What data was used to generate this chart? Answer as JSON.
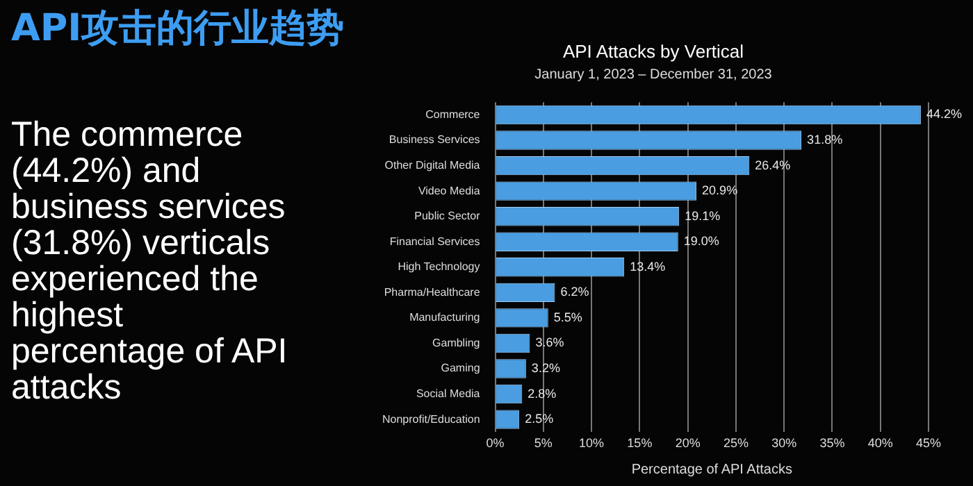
{
  "chart_data": {
    "type": "bar",
    "orientation": "horizontal",
    "title": "API Attacks by Vertical",
    "subtitle": "January 1, 2023 – December 31, 2023",
    "xlabel": "Percentage of API Attacks",
    "categories": [
      "Commerce",
      "Business Services",
      "Other Digital Media",
      "Video Media",
      "Public Sector",
      "Financial Services",
      "High Technology",
      "Pharma/Healthcare",
      "Manufacturing",
      "Gambling",
      "Gaming",
      "Social Media",
      "Nonprofit/Education"
    ],
    "values": [
      44.2,
      31.8,
      26.4,
      20.9,
      19.1,
      19.0,
      13.4,
      6.2,
      5.5,
      3.6,
      3.2,
      2.8,
      2.5
    ],
    "value_labels": [
      "44.2%",
      "31.8%",
      "26.4%",
      "20.9%",
      "19.1%",
      "19.0%",
      "13.4%",
      "6.2%",
      "5.5%",
      "3.6%",
      "3.2%",
      "2.8%",
      "2.5%"
    ],
    "color": "#4a9de0",
    "xlim": [
      0,
      45
    ],
    "xticks": [
      {
        "value": 0,
        "label": "0%"
      },
      {
        "value": 5,
        "label": "5%"
      },
      {
        "value": 10,
        "label": "10%"
      },
      {
        "value": 15,
        "label": "15%"
      },
      {
        "value": 20,
        "label": "20%"
      },
      {
        "value": 25,
        "label": "25%"
      },
      {
        "value": 30,
        "label": "30%"
      },
      {
        "value": 35,
        "label": "35%"
      },
      {
        "value": 40,
        "label": "40%"
      },
      {
        "value": 45,
        "label": "45%"
      }
    ],
    "grid": "x",
    "legend": false,
    "annotations": [
      "API攻击的行业趋势",
      "The commerce (44.2%) and business services (31.8%) verticals experienced the highest percentage of API attacks"
    ]
  }
}
